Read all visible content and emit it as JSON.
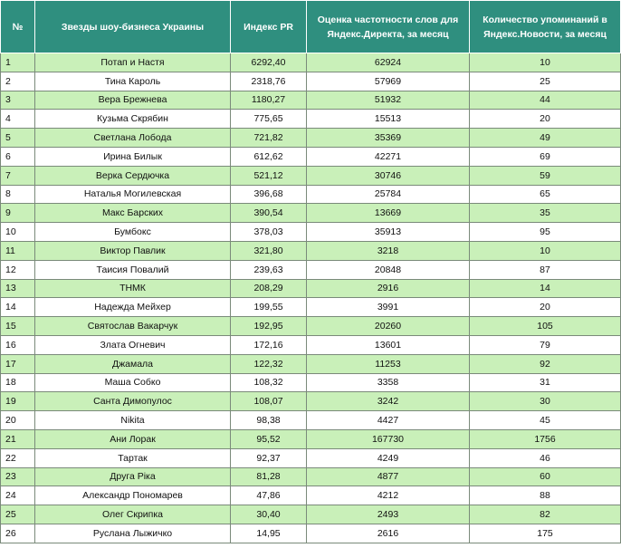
{
  "table": {
    "headers": [
      "№",
      "Звезды шоу-бизнеса Украины",
      "Индекс PR",
      "Оценка частотности слов для Яндекс.Директа, за месяц",
      "Количество упоминаний в Яндекс.Новости, за месяц"
    ],
    "rows": [
      [
        "1",
        "Потап и Настя",
        "6292,40",
        "62924",
        "10"
      ],
      [
        "2",
        "Тина Кароль",
        "2318,76",
        "57969",
        "25"
      ],
      [
        "3",
        "Вера Брежнева",
        "1180,27",
        "51932",
        "44"
      ],
      [
        "4",
        "Кузьма Скрябин",
        "775,65",
        "15513",
        "20"
      ],
      [
        "5",
        "Светлана Лобода",
        "721,82",
        "35369",
        "49"
      ],
      [
        "6",
        "Ирина Билык",
        "612,62",
        "42271",
        "69"
      ],
      [
        "7",
        "Верка Сердючка",
        "521,12",
        "30746",
        "59"
      ],
      [
        "8",
        "Наталья Могилевская",
        "396,68",
        "25784",
        "65"
      ],
      [
        "9",
        "Макс Барских",
        "390,54",
        "13669",
        "35"
      ],
      [
        "10",
        "Бумбокс",
        "378,03",
        "35913",
        "95"
      ],
      [
        "11",
        "Виктор Павлик",
        "321,80",
        "3218",
        "10"
      ],
      [
        "12",
        "Таисия Повалий",
        "239,63",
        "20848",
        "87"
      ],
      [
        "13",
        "ТНМК",
        "208,29",
        "2916",
        "14"
      ],
      [
        "14",
        "Надежда Мейхер",
        "199,55",
        "3991",
        "20"
      ],
      [
        "15",
        "Святослав Вакарчук",
        "192,95",
        "20260",
        "105"
      ],
      [
        "16",
        "Злата Огневич",
        "172,16",
        "13601",
        "79"
      ],
      [
        "17",
        "Джамала",
        "122,32",
        "11253",
        "92"
      ],
      [
        "18",
        "Маша Собко",
        "108,32",
        "3358",
        "31"
      ],
      [
        "19",
        "Санта Димопулос",
        "108,07",
        "3242",
        "30"
      ],
      [
        "20",
        "Nikita",
        "98,38",
        "4427",
        "45"
      ],
      [
        "21",
        "Ани Лорак",
        "95,52",
        "167730",
        "1756"
      ],
      [
        "22",
        "Тартак",
        "92,37",
        "4249",
        "46"
      ],
      [
        "23",
        "Друга Ріка",
        "81,28",
        "4877",
        "60"
      ],
      [
        "24",
        "Александр Пономарев",
        "47,86",
        "4212",
        "88"
      ],
      [
        "25",
        "Олег Скрипка",
        "30,40",
        "2493",
        "82"
      ],
      [
        "26",
        "Руслана Лыжичко",
        "14,95",
        "2616",
        "175"
      ]
    ]
  }
}
